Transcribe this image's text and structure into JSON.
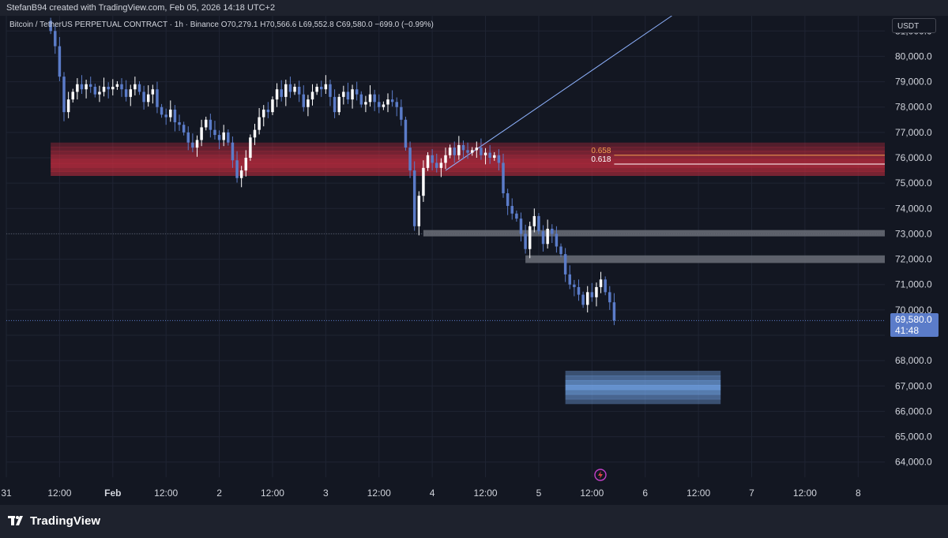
{
  "header": {
    "text": "StefanB94 created with TradingView.com, Feb 05, 2026 14:18 UTC+2"
  },
  "legend": {
    "symbol": "Bitcoin / TetherUS PERPETUAL CONTRACT · 1h · Binance",
    "open": "O70,279.1",
    "high": "H70,566.6",
    "low": "L69,552.8",
    "close": "C69,580.0",
    "change": "−699.0 (−0.99%)"
  },
  "currency": "USDT",
  "last_price": {
    "value": "69,580.0",
    "countdown": "41:48"
  },
  "brand": {
    "name": "TradingView"
  },
  "colors": {
    "background": "#131722",
    "up_candle": "#ffffff",
    "down_candle": "#5b7cc9",
    "resistance_zone": "#b22a3c",
    "support_zone": "#6f9fe0",
    "gray_zone": "#6b6e78",
    "trendline": "#8fb3ff",
    "fib_658": "#f0a050",
    "fib_618": "#ffffff"
  },
  "chart_data": {
    "type": "candlestick",
    "title": "Bitcoin / TetherUS PERPETUAL CONTRACT · 1h · Binance",
    "ylim": [
      63400,
      81600
    ],
    "y_ticks": [
      64000,
      65000,
      66000,
      67000,
      68000,
      69000,
      70000,
      71000,
      72000,
      73000,
      74000,
      75000,
      76000,
      77000,
      78000,
      79000,
      80000,
      81000
    ],
    "y_tick_labels": [
      "64,000.0",
      "65,000.0",
      "66,000.0",
      "67,000.0",
      "68,000.0",
      "",
      "70,000.0",
      "71,000.0",
      "72,000.0",
      "73,000.0",
      "74,000.0",
      "75,000.0",
      "76,000.0",
      "77,000.0",
      "78,000.0",
      "79,000.0",
      "80,000.0",
      "81,000.0"
    ],
    "x_ticks": [
      "31",
      "12:00",
      "Feb",
      "12:00",
      "2",
      "12:00",
      "3",
      "12:00",
      "4",
      "12:00",
      "5",
      "12:00",
      "6",
      "12:00",
      "7",
      "12:00",
      "8"
    ],
    "x_tick_hours": [
      0,
      12,
      24,
      36,
      48,
      60,
      72,
      84,
      96,
      108,
      120,
      132,
      144,
      156,
      168,
      180,
      192
    ],
    "x_tick_bold": [
      "Feb"
    ],
    "x_range_hours": [
      0,
      198
    ],
    "last_close": 69580.0,
    "candles_anchor": [
      [
        10,
        81000
      ],
      [
        11,
        80400
      ],
      [
        12,
        79200
      ],
      [
        13,
        77800
      ],
      [
        14,
        78300
      ],
      [
        15,
        78600
      ],
      [
        16,
        78900
      ],
      [
        17,
        78700
      ],
      [
        18,
        78900
      ],
      [
        19,
        78800
      ],
      [
        20,
        78500
      ],
      [
        21,
        78600
      ],
      [
        22,
        78800
      ],
      [
        23,
        78700
      ],
      [
        24,
        78800
      ],
      [
        25,
        78900
      ],
      [
        26,
        78700
      ],
      [
        27,
        78400
      ],
      [
        28,
        78700
      ],
      [
        29,
        78900
      ],
      [
        30,
        78600
      ],
      [
        31,
        78200
      ],
      [
        32,
        78500
      ],
      [
        33,
        78700
      ],
      [
        34,
        78000
      ],
      [
        35,
        77700
      ],
      [
        36,
        77600
      ],
      [
        37,
        77900
      ],
      [
        38,
        77400
      ],
      [
        39,
        77300
      ],
      [
        40,
        77000
      ],
      [
        41,
        76600
      ],
      [
        42,
        76400
      ],
      [
        43,
        76700
      ],
      [
        44,
        77200
      ],
      [
        45,
        77500
      ],
      [
        46,
        77100
      ],
      [
        47,
        76900
      ],
      [
        48,
        76700
      ],
      [
        49,
        77000
      ],
      [
        50,
        76600
      ],
      [
        51,
        75900
      ],
      [
        52,
        75200
      ],
      [
        53,
        75500
      ],
      [
        54,
        76000
      ],
      [
        55,
        76800
      ],
      [
        56,
        77100
      ],
      [
        57,
        77600
      ],
      [
        58,
        77900
      ],
      [
        59,
        77800
      ],
      [
        60,
        78300
      ],
      [
        61,
        78700
      ],
      [
        62,
        78400
      ],
      [
        63,
        78900
      ],
      [
        64,
        78600
      ],
      [
        65,
        78800
      ],
      [
        66,
        78500
      ],
      [
        67,
        78000
      ],
      [
        68,
        78300
      ],
      [
        69,
        78600
      ],
      [
        70,
        78800
      ],
      [
        71,
        78700
      ],
      [
        72,
        78900
      ],
      [
        73,
        78400
      ],
      [
        74,
        77800
      ],
      [
        75,
        78400
      ],
      [
        76,
        78600
      ],
      [
        77,
        78300
      ],
      [
        78,
        78700
      ],
      [
        79,
        78500
      ],
      [
        80,
        78100
      ],
      [
        81,
        78200
      ],
      [
        82,
        78500
      ],
      [
        83,
        78200
      ],
      [
        84,
        78000
      ],
      [
        85,
        78100
      ],
      [
        86,
        78300
      ],
      [
        87,
        78200
      ],
      [
        88,
        78000
      ],
      [
        89,
        77500
      ],
      [
        90,
        76400
      ],
      [
        91,
        75500
      ],
      [
        92,
        73300
      ],
      [
        93,
        74500
      ],
      [
        94,
        75600
      ],
      [
        95,
        76100
      ],
      [
        96,
        75800
      ],
      [
        97,
        75600
      ],
      [
        98,
        75800
      ],
      [
        99,
        76100
      ],
      [
        100,
        76400
      ],
      [
        101,
        76100
      ],
      [
        102,
        76500
      ],
      [
        103,
        76300
      ],
      [
        104,
        76200
      ],
      [
        105,
        76300
      ],
      [
        106,
        76400
      ],
      [
        107,
        76100
      ],
      [
        108,
        76200
      ],
      [
        109,
        76000
      ],
      [
        110,
        76100
      ],
      [
        111,
        75800
      ],
      [
        112,
        74600
      ],
      [
        113,
        74100
      ],
      [
        114,
        73800
      ],
      [
        115,
        73600
      ],
      [
        116,
        73000
      ],
      [
        117,
        72400
      ],
      [
        118,
        73300
      ],
      [
        119,
        73700
      ],
      [
        120,
        73100
      ],
      [
        121,
        72600
      ],
      [
        122,
        73200
      ],
      [
        123,
        73000
      ],
      [
        124,
        72500
      ],
      [
        125,
        72200
      ],
      [
        126,
        71400
      ],
      [
        127,
        71000
      ],
      [
        128,
        70900
      ],
      [
        129,
        70600
      ],
      [
        130,
        70200
      ],
      [
        131,
        70700
      ],
      [
        132,
        70500
      ],
      [
        133,
        70900
      ],
      [
        134,
        71200
      ],
      [
        135,
        70700
      ],
      [
        136,
        70300
      ],
      [
        137,
        69580
      ]
    ],
    "zones": [
      {
        "name": "0.618",
        "type": "resistance",
        "from_hour": 10,
        "to_hour": 198,
        "low": 75300,
        "high": 76600
      },
      {
        "name": "",
        "type": "support",
        "from_hour": 94,
        "to_hour": 198,
        "low": 72900,
        "high": 73150
      },
      {
        "name": "",
        "type": "support",
        "from_hour": 117,
        "to_hour": 198,
        "low": 71850,
        "high": 72150
      },
      {
        "name": "",
        "type": "target",
        "from_hour": 126,
        "to_hour": 161,
        "low": 66300,
        "high": 67600
      }
    ],
    "fib_levels": [
      {
        "label": "0.658",
        "value": 76100
      },
      {
        "label": "0.618",
        "value": 75750
      }
    ],
    "trendline": {
      "from": [
        99,
        75500
      ],
      "to": [
        150,
        81600
      ]
    }
  }
}
